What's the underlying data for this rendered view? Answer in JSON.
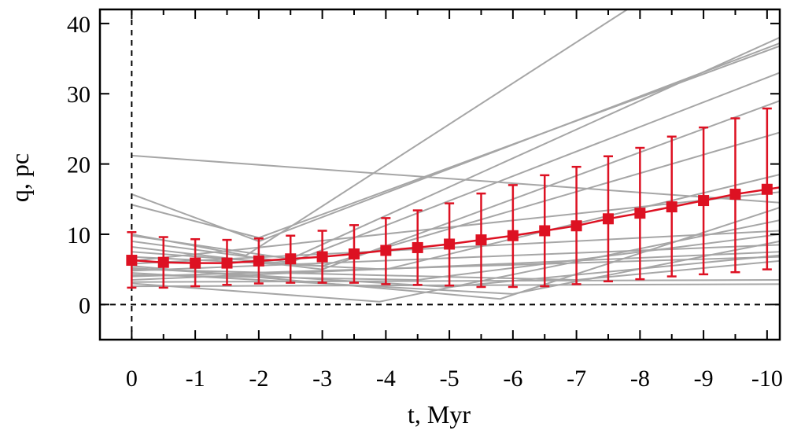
{
  "chart_data": {
    "type": "line",
    "xlabel": "t, Myr",
    "ylabel": "q, pc",
    "xlim": [
      0.5,
      -10.2
    ],
    "ylim": [
      -5,
      42
    ],
    "x_ticks": [
      0,
      -1,
      -2,
      -3,
      -4,
      -5,
      -6,
      -7,
      -8,
      -9,
      -10
    ],
    "x_tick_labels": [
      "0",
      "-1",
      "-2",
      "-3",
      "-4",
      "-5",
      "-6",
      "-7",
      "-8",
      "-9",
      "-10"
    ],
    "y_ticks": [
      0,
      10,
      20,
      30,
      40
    ],
    "y_tick_labels": [
      "0",
      "10",
      "20",
      "30",
      "40"
    ],
    "reference_lines": [
      {
        "orientation": "horizontal",
        "value": 0,
        "style": "dashed"
      },
      {
        "orientation": "vertical",
        "value": 0,
        "style": "dashed"
      }
    ],
    "colors": {
      "mean": "#dd1122",
      "members": "#a6a6a6"
    },
    "mean_series": {
      "name": "mean",
      "x": [
        0,
        -0.5,
        -1,
        -1.5,
        -2,
        -2.5,
        -3,
        -3.5,
        -4,
        -4.5,
        -5,
        -5.5,
        -6,
        -6.5,
        -7,
        -7.5,
        -8,
        -8.5,
        -9,
        -9.5,
        -10
      ],
      "y": [
        6.3,
        6.0,
        5.9,
        5.9,
        6.2,
        6.5,
        6.8,
        7.2,
        7.7,
        8.1,
        8.6,
        9.2,
        9.8,
        10.5,
        11.2,
        12.2,
        13.0,
        13.9,
        14.8,
        15.7,
        16.4
      ],
      "err_low": [
        2.4,
        2.4,
        2.6,
        2.8,
        3.0,
        3.1,
        3.1,
        3.1,
        2.9,
        2.8,
        2.7,
        2.5,
        2.5,
        2.6,
        2.9,
        3.3,
        3.6,
        4.0,
        4.3,
        4.6,
        5.0
      ],
      "err_high": [
        10.3,
        9.6,
        9.3,
        9.2,
        9.4,
        9.8,
        10.5,
        11.3,
        12.3,
        13.4,
        14.4,
        15.8,
        17.0,
        18.4,
        19.6,
        21.1,
        22.3,
        23.9,
        25.2,
        26.5,
        27.9
      ]
    },
    "member_series": [
      {
        "name": "m1",
        "x": [
          0,
          -10.2
        ],
        "y": [
          21.2,
          14.5
        ]
      },
      {
        "name": "m2",
        "x": [
          0,
          -2,
          -10.2
        ],
        "y": [
          15.7,
          9.0,
          37.2
        ]
      },
      {
        "name": "m3",
        "x": [
          0,
          -2,
          -10.2
        ],
        "y": [
          14.2,
          9.5,
          36.8
        ]
      },
      {
        "name": "m4",
        "x": [
          0,
          -1.8,
          -7.8
        ],
        "y": [
          10.0,
          7.0,
          42.0
        ]
      },
      {
        "name": "m5",
        "x": [
          0,
          -2.5,
          -10.2
        ],
        "y": [
          9.8,
          6.5,
          38.0
        ]
      },
      {
        "name": "m6",
        "x": [
          0,
          -2.5,
          -10.2
        ],
        "y": [
          9.0,
          6.0,
          33.0
        ]
      },
      {
        "name": "m7",
        "x": [
          0,
          -3,
          -10.2
        ],
        "y": [
          8.2,
          5.0,
          29.0
        ]
      },
      {
        "name": "m8",
        "x": [
          0,
          -3,
          -10.2
        ],
        "y": [
          7.5,
          5.5,
          24.5
        ]
      },
      {
        "name": "m9",
        "x": [
          0,
          -4,
          -10.2
        ],
        "y": [
          6.8,
          5.0,
          18.5
        ]
      },
      {
        "name": "m10",
        "x": [
          0,
          -10.2
        ],
        "y": [
          6.2,
          16.0
        ]
      },
      {
        "name": "m11",
        "x": [
          0,
          -5.8,
          -10.2
        ],
        "y": [
          5.5,
          0.8,
          13.8
        ]
      },
      {
        "name": "m12",
        "x": [
          0,
          -3.9,
          -10.2
        ],
        "y": [
          3.0,
          0.4,
          12.0
        ]
      },
      {
        "name": "m13",
        "x": [
          0,
          -10.2
        ],
        "y": [
          5.8,
          10.5
        ]
      },
      {
        "name": "m14",
        "x": [
          0,
          -6,
          -10.2
        ],
        "y": [
          4.5,
          1.5,
          9.0
        ]
      },
      {
        "name": "m15",
        "x": [
          0,
          -10.2
        ],
        "y": [
          4.8,
          8.5
        ]
      },
      {
        "name": "m16",
        "x": [
          0,
          -10.2
        ],
        "y": [
          3.5,
          7.5
        ]
      },
      {
        "name": "m17",
        "x": [
          0,
          -10.2
        ],
        "y": [
          4.0,
          6.8
        ]
      },
      {
        "name": "m18",
        "x": [
          0,
          -7,
          -10.2
        ],
        "y": [
          5.0,
          3.5,
          6.2
        ]
      },
      {
        "name": "m19",
        "x": [
          0,
          -10.2
        ],
        "y": [
          2.6,
          2.9
        ]
      },
      {
        "name": "m20",
        "x": [
          0,
          -10.2
        ],
        "y": [
          3.2,
          3.5
        ]
      },
      {
        "name": "m21",
        "x": [
          0,
          -5,
          -10.2
        ],
        "y": [
          5.2,
          2.5,
          7.0
        ]
      },
      {
        "name": "m22",
        "x": [
          0,
          -4.5,
          -10.2
        ],
        "y": [
          4.2,
          3.5,
          10.0
        ]
      }
    ]
  }
}
